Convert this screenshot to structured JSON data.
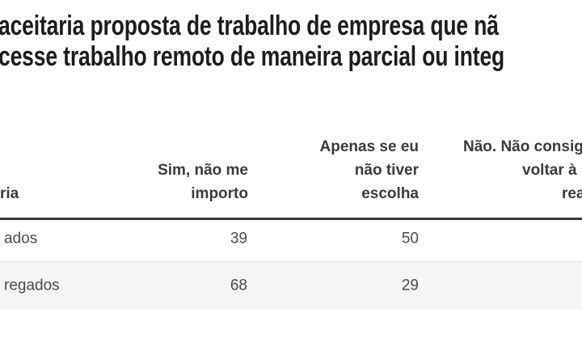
{
  "chart_data": {
    "type": "table",
    "title_lines_visible": [
      "aceitaria proposta de trabalho de empresa que nã",
      "cesse trabalho remoto de maneira parcial ou integ"
    ],
    "columns": [
      "ria",
      "Sim, não me importo",
      "Apenas se eu não tiver escolha",
      "Não. Não consig voltar à rea"
    ],
    "rows": [
      {
        "category": "ados",
        "values": [
          39,
          50
        ]
      },
      {
        "category": "regados",
        "values": [
          68,
          29
        ]
      }
    ],
    "layout": {
      "cropped_left": true,
      "cropped_right": true,
      "value_alignment": "right",
      "zebra_striping": true,
      "header_rule": "thick dark line below headers"
    }
  },
  "title": {
    "line1": "aceitaria proposta de trabalho de empresa que nã",
    "line2": "cesse trabalho remoto de maneira parcial ou integ"
  },
  "header": {
    "col1_fragment": "ria",
    "col2_lines": [
      "Sim, não me",
      "importo"
    ],
    "col3_lines": [
      "Apenas se eu",
      "não tiver",
      "escolha"
    ],
    "col4_lines": [
      "Não. Não consig",
      "voltar à",
      "rea"
    ]
  },
  "rows": [
    {
      "label_fragment": "ados",
      "col2": "39",
      "col3": "50"
    },
    {
      "label_fragment": "regados",
      "col2": "68",
      "col3": "29"
    }
  ],
  "colors": {
    "title_text": "#1d1d1d",
    "header_text": "#3c3c3c",
    "cell_text": "#4c4c4c",
    "header_rule": "#3a3a3a",
    "row_alt_background": "#f5f5f5",
    "row_separator": "#e0e0e0",
    "page_background": "#ffffff"
  }
}
